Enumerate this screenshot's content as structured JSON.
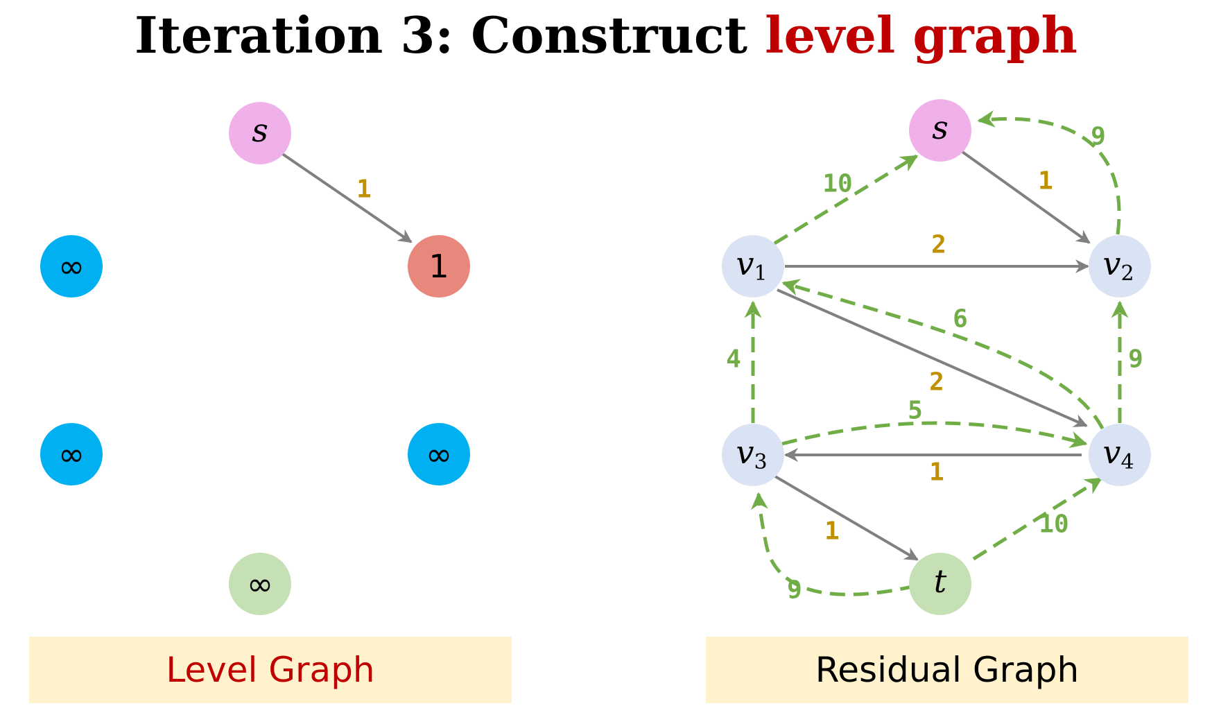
{
  "title": {
    "prefix": "Iteration 3: Construct",
    "highlight": "level graph"
  },
  "colors": {
    "source": "#f0b0ea",
    "sink": "#c5e0b4",
    "unreached": "#00b0f0",
    "reached": "#e8877b",
    "residual_node": "#dae3f3",
    "solid_edge": "#808080",
    "dashed_edge": "#70ad47",
    "solid_label": "#bf9000",
    "highlight": "#c00000"
  },
  "level_graph": {
    "caption": "Level Graph",
    "nodes": [
      {
        "id": "s",
        "label": "s",
        "kind": "source"
      },
      {
        "id": "v1",
        "label": "∞",
        "kind": "unreached"
      },
      {
        "id": "v2",
        "label": "1",
        "kind": "reached"
      },
      {
        "id": "v3",
        "label": "∞",
        "kind": "unreached"
      },
      {
        "id": "v4",
        "label": "∞",
        "kind": "unreached"
      },
      {
        "id": "t",
        "label": "∞",
        "kind": "sink"
      }
    ],
    "edges": [
      {
        "from": "s",
        "to": "v2",
        "label": "1"
      }
    ]
  },
  "residual_graph": {
    "caption": "Residual Graph",
    "nodes": [
      {
        "id": "s",
        "label": "s",
        "sub": ""
      },
      {
        "id": "v1",
        "label": "v",
        "sub": "1"
      },
      {
        "id": "v2",
        "label": "v",
        "sub": "2"
      },
      {
        "id": "v3",
        "label": "v",
        "sub": "3"
      },
      {
        "id": "v4",
        "label": "v",
        "sub": "4"
      },
      {
        "id": "t",
        "label": "t",
        "sub": ""
      }
    ],
    "edges": [
      {
        "from": "s",
        "to": "v2",
        "label": "1",
        "style": "solid"
      },
      {
        "from": "v1",
        "to": "v2",
        "label": "2",
        "style": "solid"
      },
      {
        "from": "v1",
        "to": "v4",
        "label": "2",
        "style": "solid"
      },
      {
        "from": "v4",
        "to": "v3",
        "label": "1",
        "style": "solid"
      },
      {
        "from": "v3",
        "to": "t",
        "label": "1",
        "style": "solid"
      },
      {
        "from": "v1",
        "to": "s",
        "label": "10",
        "style": "dashed"
      },
      {
        "from": "v2",
        "to": "s",
        "label": "9",
        "style": "dashed"
      },
      {
        "from": "v4",
        "to": "v1",
        "label": "6",
        "style": "dashed"
      },
      {
        "from": "v3",
        "to": "v1",
        "label": "4",
        "style": "dashed"
      },
      {
        "from": "v4",
        "to": "v2",
        "label": "9",
        "style": "dashed"
      },
      {
        "from": "v3",
        "to": "v4",
        "label": "5",
        "style": "dashed"
      },
      {
        "from": "t",
        "to": "v4",
        "label": "10",
        "style": "dashed"
      },
      {
        "from": "t",
        "to": "v3",
        "label": "9",
        "style": "dashed"
      }
    ]
  }
}
